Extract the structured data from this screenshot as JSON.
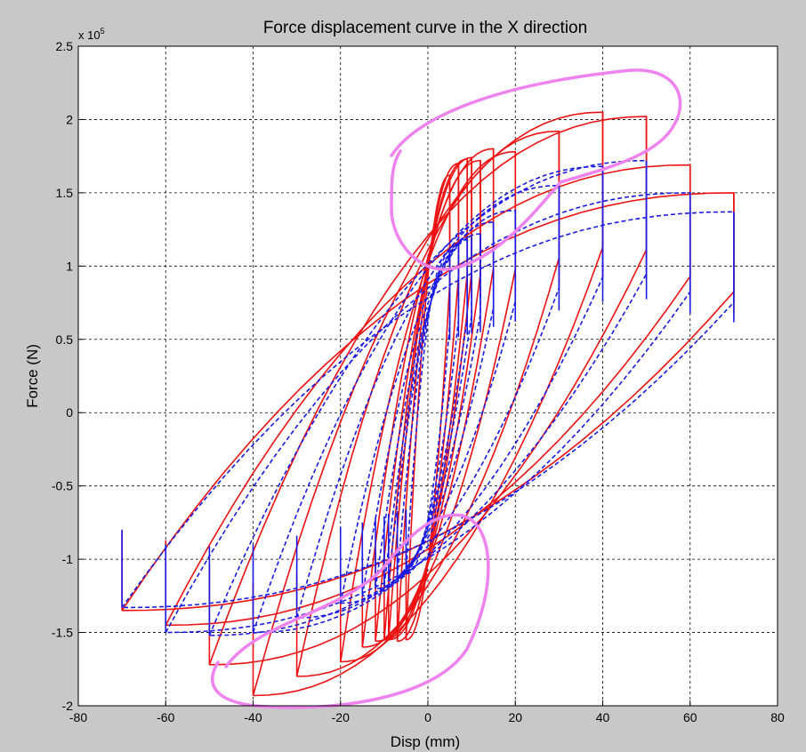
{
  "chart_data": {
    "type": "line",
    "title": "Force displacement curve in the X direction",
    "xlabel": "Disp (mm)",
    "ylabel": "Force (N)",
    "y_exponent_label": "x 10",
    "y_exponent_power": "5",
    "xlim": [
      -80,
      80
    ],
    "ylim": [
      -2,
      2.5
    ],
    "xticks": [
      "-80",
      "-60",
      "-40",
      "-20",
      "0",
      "20",
      "40",
      "60",
      "80"
    ],
    "yticks": [
      "-2",
      "-1.5",
      "-1",
      "-0.5",
      "0",
      "0.5",
      "1",
      "1.5",
      "2",
      "2.5"
    ],
    "grid": true,
    "y_units": "x 10^5 N",
    "series": [
      {
        "color": "#ee1111",
        "style": "solid",
        "amplitudes": [
          5,
          7,
          9,
          10,
          12,
          15,
          20,
          30,
          40,
          50,
          60,
          70
        ],
        "peak_force_pos": [
          1.62,
          1.7,
          1.73,
          1.74,
          1.72,
          1.8,
          1.78,
          1.92,
          2.05,
          2.02,
          1.69,
          1.5
        ],
        "peak_force_neg": [
          -1.55,
          -1.56,
          -1.55,
          -1.55,
          -1.56,
          -1.6,
          -1.7,
          -1.8,
          -1.93,
          -1.72,
          -1.45,
          -1.35
        ]
      },
      {
        "color": "#1a1ae6",
        "style": "dashed",
        "amplitudes": [
          5,
          7,
          9,
          10,
          12,
          15,
          20,
          30,
          40,
          50,
          60,
          70
        ],
        "peak_force_pos": [
          1.1,
          1.15,
          1.18,
          1.2,
          1.22,
          1.3,
          1.38,
          1.55,
          1.68,
          1.72,
          1.5,
          1.37
        ],
        "peak_force_neg": [
          -1.1,
          -1.12,
          -1.15,
          -1.18,
          -1.2,
          -1.25,
          -1.3,
          -1.4,
          -1.5,
          -1.52,
          -1.5,
          -1.33
        ]
      }
    ],
    "annotations": [
      {
        "type": "freehand-loop",
        "color": "#ee82ee",
        "region": "upper peaks"
      },
      {
        "type": "freehand-loop",
        "color": "#ee82ee",
        "region": "lower peaks"
      }
    ]
  }
}
